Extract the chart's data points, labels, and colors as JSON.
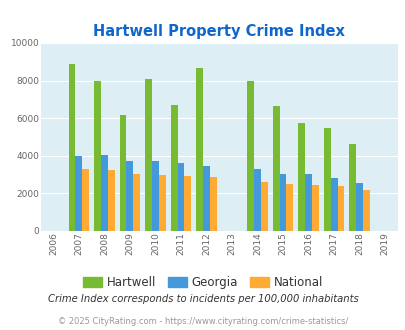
{
  "title": "Hartwell Property Crime Index",
  "years": [
    2007,
    2008,
    2009,
    2010,
    2011,
    2012,
    2014,
    2015,
    2016,
    2017,
    2018
  ],
  "hartwell": [
    8900,
    8000,
    6150,
    8100,
    6700,
    8650,
    7950,
    6650,
    5750,
    5500,
    4650
  ],
  "georgia": [
    4000,
    4050,
    3700,
    3700,
    3600,
    3450,
    3300,
    3050,
    3050,
    2800,
    2550
  ],
  "national": [
    3300,
    3250,
    3050,
    3000,
    2900,
    2850,
    2600,
    2500,
    2450,
    2400,
    2200
  ],
  "hartwell_color": "#77bb33",
  "georgia_color": "#4499dd",
  "national_color": "#ffaa33",
  "bg_color": "#ddeef5",
  "ylim": [
    0,
    10000
  ],
  "yticks": [
    0,
    2000,
    4000,
    6000,
    8000,
    10000
  ],
  "xticks_all": [
    2006,
    2007,
    2008,
    2009,
    2010,
    2011,
    2012,
    2013,
    2014,
    2015,
    2016,
    2017,
    2018,
    2019
  ],
  "subtitle": "Crime Index corresponds to incidents per 100,000 inhabitants",
  "footer": "© 2025 CityRating.com - https://www.cityrating.com/crime-statistics/",
  "legend_labels": [
    "Hartwell",
    "Georgia",
    "National"
  ],
  "title_color": "#1166cc",
  "subtitle_color": "#333333",
  "footer_color": "#999999",
  "grid_color": "#ffffff",
  "bar_width": 0.27
}
